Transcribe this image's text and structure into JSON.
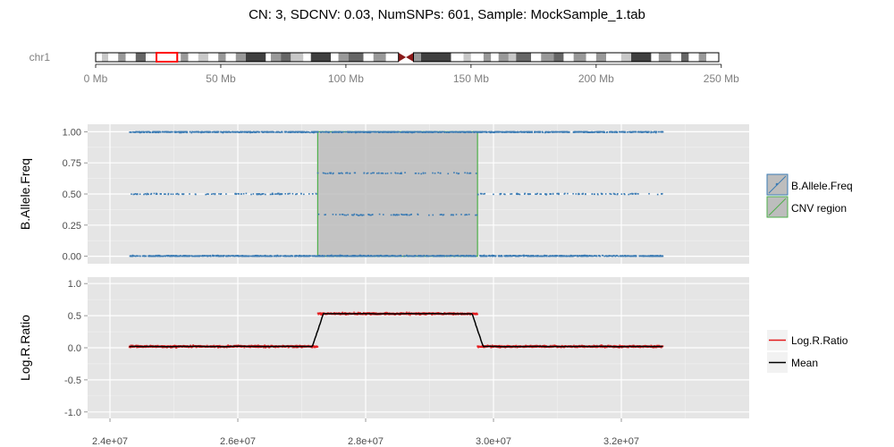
{
  "chart_data": {
    "title": "CN: 3, SDCNV: 0.03, NumSNPs: 601, Sample: MockSample_1.tab",
    "ideogram": {
      "chromosome_label": "chr1",
      "tick_labels": [
        "0 Mb",
        "50 Mb",
        "100 Mb",
        "150 Mb",
        "200 Mb",
        "250 Mb"
      ],
      "tick_values_mb": [
        0,
        50,
        100,
        150,
        200,
        250
      ],
      "length_mb": 249,
      "highlight_mb": [
        24.3,
        32.6
      ],
      "centromere_mb": [
        121,
        127
      ],
      "bands": [
        {
          "start": 0,
          "end": 2.5,
          "stain": "gneg"
        },
        {
          "start": 2.5,
          "end": 5.0,
          "stain": "gpos25"
        },
        {
          "start": 5.0,
          "end": 9.0,
          "stain": "gneg"
        },
        {
          "start": 9.0,
          "end": 12.0,
          "stain": "gpos50"
        },
        {
          "start": 12.0,
          "end": 16.0,
          "stain": "gneg"
        },
        {
          "start": 16.0,
          "end": 20.0,
          "stain": "gpos75"
        },
        {
          "start": 20.0,
          "end": 23.0,
          "stain": "gneg"
        },
        {
          "start": 23.0,
          "end": 34.0,
          "stain": "gneg"
        },
        {
          "start": 34.0,
          "end": 37.0,
          "stain": "gpos50"
        },
        {
          "start": 37.0,
          "end": 41.0,
          "stain": "gneg"
        },
        {
          "start": 41.0,
          "end": 45.0,
          "stain": "gpos25"
        },
        {
          "start": 45.0,
          "end": 49.0,
          "stain": "gneg"
        },
        {
          "start": 49.0,
          "end": 52.0,
          "stain": "gpos50"
        },
        {
          "start": 52.0,
          "end": 56.0,
          "stain": "gneg"
        },
        {
          "start": 56.0,
          "end": 60.0,
          "stain": "gpos50"
        },
        {
          "start": 60.0,
          "end": 68.0,
          "stain": "gpos100"
        },
        {
          "start": 68.0,
          "end": 70.0,
          "stain": "gneg"
        },
        {
          "start": 70.0,
          "end": 74.0,
          "stain": "gpos50"
        },
        {
          "start": 74.0,
          "end": 78.0,
          "stain": "gpos75"
        },
        {
          "start": 78.0,
          "end": 83.0,
          "stain": "gpos25"
        },
        {
          "start": 83.0,
          "end": 86.0,
          "stain": "gneg"
        },
        {
          "start": 86.0,
          "end": 94.0,
          "stain": "gpos100"
        },
        {
          "start": 94.0,
          "end": 97.0,
          "stain": "gneg"
        },
        {
          "start": 97.0,
          "end": 101.0,
          "stain": "gpos50"
        },
        {
          "start": 101.0,
          "end": 107.0,
          "stain": "gpos75"
        },
        {
          "start": 107.0,
          "end": 111.0,
          "stain": "gneg"
        },
        {
          "start": 111.0,
          "end": 116.0,
          "stain": "gpos50"
        },
        {
          "start": 116.0,
          "end": 121.0,
          "stain": "gneg"
        },
        {
          "start": 127.0,
          "end": 130.0,
          "stain": "gpos50"
        },
        {
          "start": 130.0,
          "end": 142.0,
          "stain": "gpos100"
        },
        {
          "start": 142.0,
          "end": 147.0,
          "stain": "gneg"
        },
        {
          "start": 147.0,
          "end": 150.0,
          "stain": "gpos25"
        },
        {
          "start": 150.0,
          "end": 155.0,
          "stain": "gneg"
        },
        {
          "start": 155.0,
          "end": 158.0,
          "stain": "gpos50"
        },
        {
          "start": 158.0,
          "end": 161.0,
          "stain": "gneg"
        },
        {
          "start": 161.0,
          "end": 165.0,
          "stain": "gpos50"
        },
        {
          "start": 165.0,
          "end": 168.0,
          "stain": "gpos25"
        },
        {
          "start": 168.0,
          "end": 174.0,
          "stain": "gpos75"
        },
        {
          "start": 174.0,
          "end": 178.0,
          "stain": "gneg"
        },
        {
          "start": 178.0,
          "end": 183.0,
          "stain": "gpos50"
        },
        {
          "start": 183.0,
          "end": 187.0,
          "stain": "gpos75"
        },
        {
          "start": 187.0,
          "end": 191.0,
          "stain": "gneg"
        },
        {
          "start": 191.0,
          "end": 196.0,
          "stain": "gpos50"
        },
        {
          "start": 196.0,
          "end": 200.0,
          "stain": "gneg"
        },
        {
          "start": 200.0,
          "end": 204.0,
          "stain": "gpos50"
        },
        {
          "start": 204.0,
          "end": 210.0,
          "stain": "gneg"
        },
        {
          "start": 210.0,
          "end": 214.0,
          "stain": "gpos25"
        },
        {
          "start": 214.0,
          "end": 222.0,
          "stain": "gpos100"
        },
        {
          "start": 222.0,
          "end": 225.0,
          "stain": "gneg"
        },
        {
          "start": 225.0,
          "end": 230.0,
          "stain": "gpos50"
        },
        {
          "start": 230.0,
          "end": 234.0,
          "stain": "gneg"
        },
        {
          "start": 234.0,
          "end": 237.0,
          "stain": "gpos75"
        },
        {
          "start": 237.0,
          "end": 241.0,
          "stain": "gneg"
        },
        {
          "start": 241.0,
          "end": 244.0,
          "stain": "gpos50"
        },
        {
          "start": 244.0,
          "end": 249.0,
          "stain": "gneg"
        }
      ]
    },
    "x_axis": {
      "tick_labels": [
        "2.4e+07",
        "2.6e+07",
        "2.8e+07",
        "3.0e+07",
        "3.2e+07"
      ],
      "tick_values": [
        24000000,
        26000000,
        28000000,
        30000000,
        32000000
      ],
      "xlim": [
        23650000,
        34000000
      ]
    },
    "baf_panel": {
      "type": "scatter",
      "ylabel": "B.Allele.Freq",
      "ylim": [
        -0.06,
        1.06
      ],
      "y_tick_labels": [
        "0.00",
        "0.25",
        "0.50",
        "0.75",
        "1.00"
      ],
      "y_tick_values": [
        0,
        0.25,
        0.5,
        0.75,
        1.0
      ],
      "x_range": [
        24300000,
        32650000
      ],
      "normal_bands": [
        0,
        0.5,
        1.0
      ],
      "cnv_bands": [
        0,
        0.333,
        0.667,
        1.0
      ],
      "cnv_region": {
        "x_start": 27250000,
        "x_end": 29750000,
        "y_start": 0,
        "y_end": 1
      },
      "point_color": "#3A7BB4",
      "cnv_fill": "#BDBDBD",
      "cnv_stroke": "#4DAF4A"
    },
    "lrr_panel": {
      "type": "line",
      "ylabel": "Log.R.Ratio",
      "ylim": [
        -1.1,
        1.1
      ],
      "y_tick_labels": [
        "-1.0",
        "-0.5",
        "0.0",
        "0.5",
        "1.0"
      ],
      "y_tick_values": [
        -1.0,
        -0.5,
        0.0,
        0.5,
        1.0
      ],
      "segments": [
        {
          "x_start": 24300000,
          "x_end": 27250000,
          "level": 0.02
        },
        {
          "x_start": 27250000,
          "x_end": 29750000,
          "level": 0.53
        },
        {
          "x_start": 29750000,
          "x_end": 32650000,
          "level": 0.02
        }
      ],
      "point_color": "#E41A1C",
      "mean_color": "#000000"
    },
    "legend_top": {
      "placement": "right",
      "items": [
        {
          "label": "B.Allele.Freq",
          "color": "#3A7BB4"
        },
        {
          "label": "CNV region",
          "color": "#4DAF4A"
        }
      ]
    },
    "legend_bottom": {
      "placement": "right",
      "items": [
        {
          "label": "Log.R.Ratio",
          "color": "#E41A1C"
        },
        {
          "label": "Mean",
          "color": "#000000"
        }
      ]
    },
    "colors": {
      "panel_bg": "#E5E5E5",
      "grid_major": "#FFFFFF",
      "grid_minor": "#F2F2F2",
      "highlight": "#FF0000",
      "centromere": "#8B1A1A"
    }
  }
}
